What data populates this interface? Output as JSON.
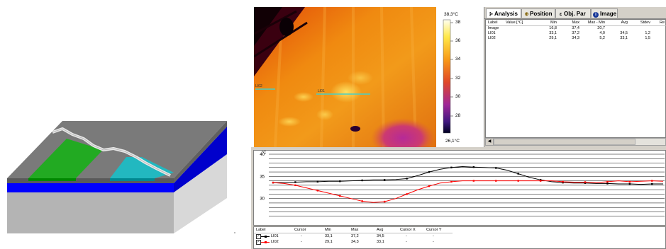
{
  "colorbar": {
    "max_label": "38,3°C",
    "min_label": "26,1°C",
    "ticks": [
      "38",
      "36",
      "34",
      "32",
      "30",
      "28"
    ]
  },
  "analysis": {
    "tabs": [
      {
        "label": "Analysis",
        "icon": "analysis-icon"
      },
      {
        "label": "Position",
        "icon": "position-icon"
      },
      {
        "label": "Obj. Par",
        "icon": "object-parameters-icon"
      },
      {
        "label": "Image",
        "icon": "info-icon"
      }
    ],
    "columns": [
      "Label",
      "Value [°C]",
      "Min",
      "Max",
      "Max - Min",
      "Avg",
      "Stdev",
      "Re"
    ],
    "rows": [
      {
        "label": "Image",
        "value": "",
        "min": "16,8",
        "max": "37,4",
        "maxmin": "20,7",
        "avg": "",
        "stdev": ""
      },
      {
        "label": "LI01",
        "value": "",
        "min": "33,1",
        "max": "37,2",
        "maxmin": "4,0",
        "avg": "34,5",
        "stdev": "1,2"
      },
      {
        "label": "LI02",
        "value": "",
        "min": "29,1",
        "max": "34,3",
        "maxmin": "5,2",
        "avg": "33,1",
        "stdev": "1,5"
      }
    ]
  },
  "thermal_labels": [
    "LI02",
    "LI01"
  ],
  "profile": {
    "unit": "°C",
    "legend_columns": [
      "Label",
      "Cursor",
      "Min",
      "Max",
      "Avg",
      "Cursor X",
      "Cursor Y"
    ],
    "legend_rows": [
      {
        "label": "LI01",
        "cursor": "-",
        "min": "33,1",
        "max": "37,2",
        "avg": "34,5",
        "cx": "-",
        "cy": "-"
      },
      {
        "label": "LI02",
        "cursor": "-",
        "min": "29,1",
        "max": "34,3",
        "avg": "33,1",
        "cx": "-",
        "cy": "-"
      }
    ]
  },
  "chart_data": {
    "type": "line",
    "ylim": [
      25,
      40
    ],
    "yticks": [
      "40",
      "35",
      "30"
    ],
    "series": [
      {
        "name": "LI01",
        "color": "#000000",
        "values": [
          33.6,
          33.6,
          33.7,
          33.8,
          33.8,
          33.9,
          33.9,
          34.0,
          34.1,
          34.2,
          34.2,
          34.3,
          34.5,
          35.2,
          36.0,
          36.6,
          37.0,
          37.2,
          37.1,
          37.0,
          36.9,
          36.4,
          35.6,
          34.8,
          34.2,
          33.8,
          33.6,
          33.5,
          33.5,
          33.4,
          33.4,
          33.3,
          33.3,
          33.2,
          33.3,
          33.3
        ]
      },
      {
        "name": "LI02",
        "color": "#ff0000",
        "values": [
          33.6,
          33.4,
          33.0,
          32.4,
          31.8,
          31.2,
          30.6,
          30.0,
          29.4,
          29.1,
          29.3,
          30.0,
          31.0,
          32.0,
          32.8,
          33.5,
          33.8,
          34.0,
          34.0,
          34.0,
          34.0,
          34.0,
          34.0,
          34.0,
          34.0,
          34.0,
          33.8,
          33.7,
          33.7,
          33.6,
          33.8,
          34.0,
          33.8,
          33.9,
          34.0,
          33.9
        ]
      }
    ]
  },
  "colors": {
    "substrate_top": "#7a7a7a",
    "blue_layer": "#0000ff",
    "green_region": "#22aa22",
    "cyan_region": "#22b8c0",
    "window_bg": "#d4d0c8"
  }
}
